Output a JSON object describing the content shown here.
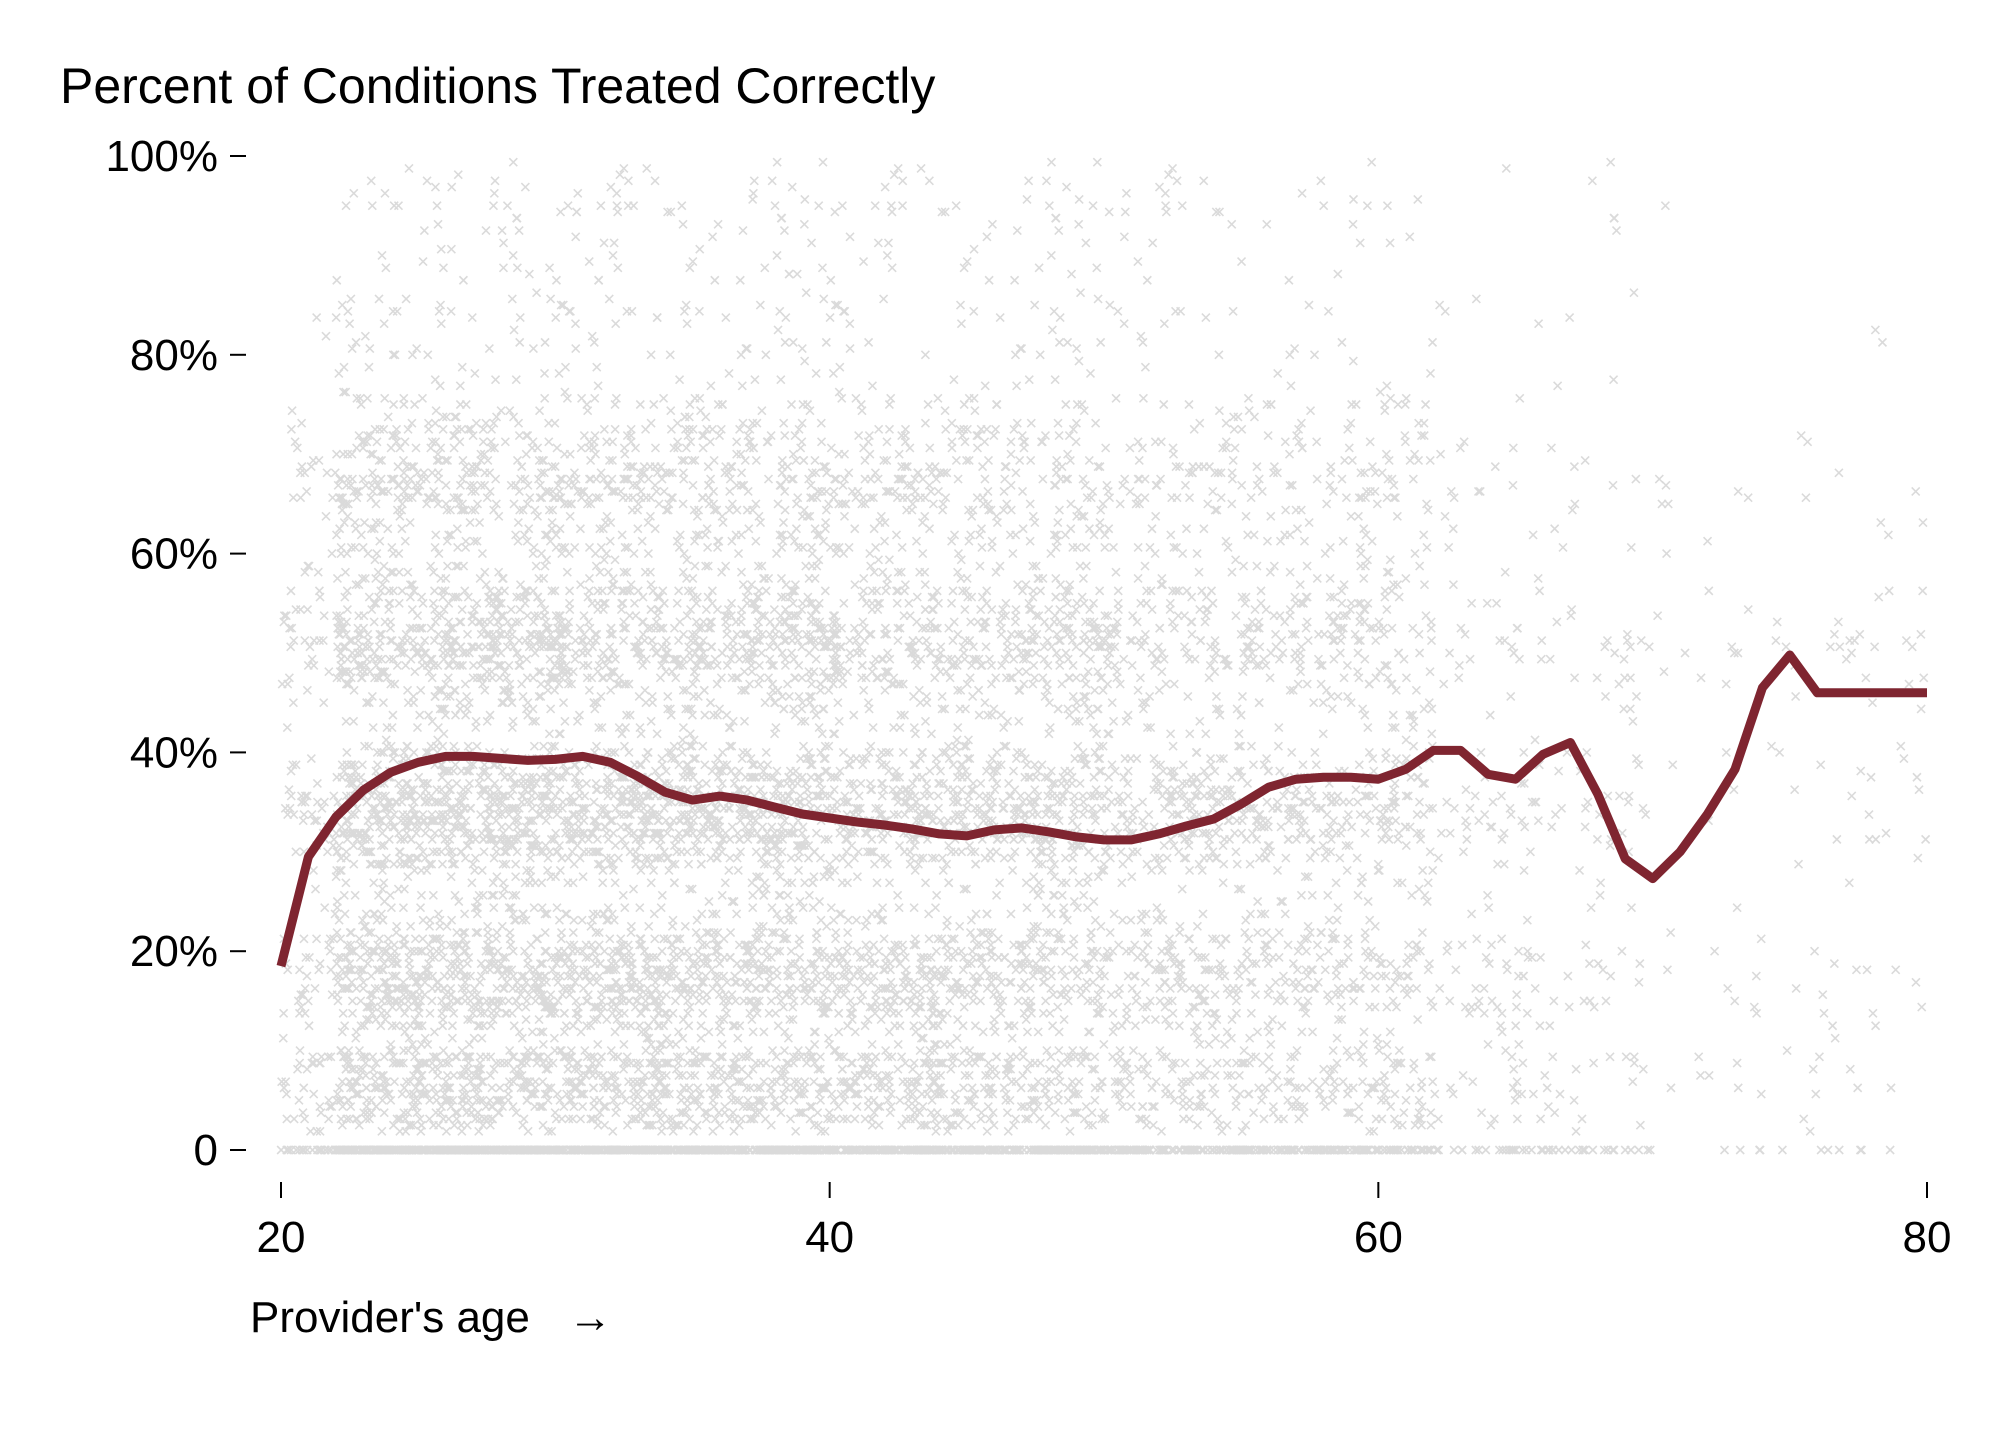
{
  "chart_data": {
    "type": "scatter",
    "title": "Percent of Conditions Treated Correctly",
    "subtitle": "",
    "xlabel": "Provider's age",
    "xlabel_arrow": "→",
    "ylabel": "",
    "xlim": [
      20,
      80
    ],
    "ylim": [
      0,
      100
    ],
    "x_ticks": [
      20,
      40,
      60,
      80
    ],
    "x_tick_labels": [
      "20",
      "40",
      "60",
      "80"
    ],
    "y_ticks": [
      0,
      20,
      40,
      60,
      80,
      100
    ],
    "y_tick_labels": [
      "0",
      "20%",
      "40%",
      "60%",
      "80%",
      "100%"
    ],
    "grid": false,
    "legend": "none",
    "colors": {
      "points": "#000000",
      "trend": "#7f2530"
    },
    "scatter_description_generator": {
      "marker": "x",
      "point_opacity": 0.14,
      "seed": 20,
      "point_counts_by_age_band": [
        {
          "age": [
            20,
            22
          ],
          "count": 180
        },
        {
          "age": [
            22,
            30
          ],
          "count": 2600
        },
        {
          "age": [
            30,
            40
          ],
          "count": 3000
        },
        {
          "age": [
            40,
            50
          ],
          "count": 2300
        },
        {
          "age": [
            50,
            60
          ],
          "count": 1500
        },
        {
          "age": [
            60,
            62
          ],
          "count": 260
        },
        {
          "age": [
            62,
            70
          ],
          "count": 300
        },
        {
          "age": [
            70,
            80
          ],
          "count": 130
        }
      ]
    },
    "series": [
      {
        "type": "line",
        "x": [
          20,
          21,
          22,
          23,
          24,
          25,
          26,
          27,
          28,
          29,
          30,
          31,
          32,
          33,
          34,
          35,
          36,
          37,
          38,
          39,
          40,
          41,
          42,
          43,
          44,
          45,
          46,
          47,
          48,
          49,
          50,
          51,
          52,
          53,
          54,
          55,
          56,
          57,
          58,
          59,
          60,
          61,
          62,
          63,
          64,
          65,
          66,
          67,
          68,
          69,
          70,
          71,
          72,
          73,
          74,
          75,
          76,
          77,
          78,
          79,
          80
        ],
        "values": [
          18.5,
          29.5,
          33.5,
          36.2,
          38.0,
          39.0,
          39.6,
          39.6,
          39.4,
          39.2,
          39.3,
          39.6,
          39.0,
          37.6,
          36.0,
          35.2,
          35.6,
          35.2,
          34.5,
          33.8,
          33.4,
          33.0,
          32.7,
          32.3,
          31.8,
          31.6,
          32.2,
          32.4,
          32.0,
          31.5,
          31.2,
          31.2,
          31.8,
          32.6,
          33.3,
          34.8,
          36.5,
          37.3,
          37.5,
          37.5,
          37.3,
          38.3,
          40.2,
          40.2,
          37.8,
          37.3,
          39.8,
          41.0,
          35.8,
          29.3,
          27.3,
          30.0,
          33.8,
          38.3,
          46.5,
          49.8,
          46.0,
          46.0,
          46.0,
          46.0,
          46.0
        ]
      }
    ]
  }
}
